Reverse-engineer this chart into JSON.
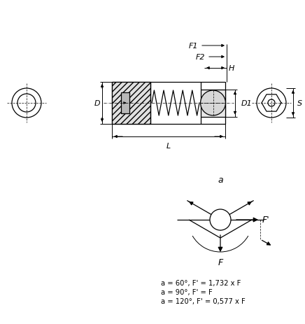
{
  "bg_color": "#ffffff",
  "line_color": "#000000",
  "fig_width": 4.36,
  "fig_height": 4.64,
  "dpi": 100,
  "formula_lines": [
    "a = 60°, F' = 1,732 x F",
    "a = 90°, F' = F",
    "a = 120°, F' = 0,577 x F"
  ]
}
